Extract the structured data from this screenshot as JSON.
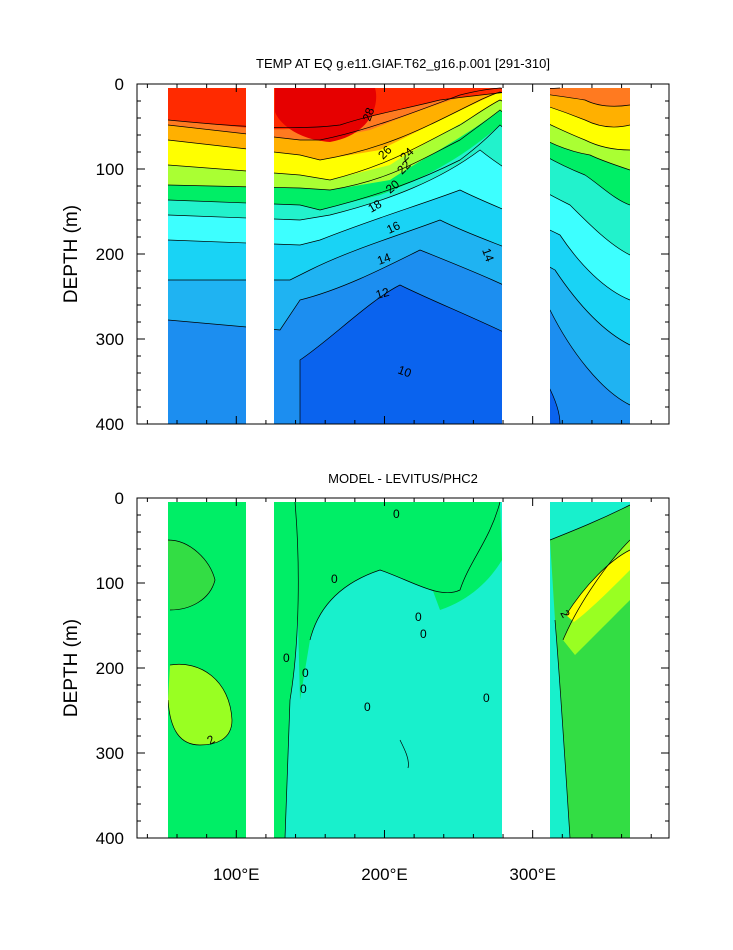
{
  "chart_data": [
    {
      "type": "contour",
      "title": "TEMP AT EQ g.e11.GIAF.T62_g16.p.001 [291-310]",
      "ylabel": "DEPTH (m)",
      "xlabel": "",
      "y_ticks": [
        "0",
        "100",
        "200",
        "300",
        "400"
      ],
      "x_ticks": [],
      "xlim": [
        33,
        392
      ],
      "ylim": [
        400,
        0
      ],
      "land_x": [
        [
          97,
          118
        ],
        [
          129,
          133
        ],
        [
          279,
          315
        ],
        [
          369,
          392
        ]
      ],
      "contour_labels": [
        "28",
        "26",
        "24",
        "22",
        "20",
        "18",
        "16",
        "14",
        "14",
        "12",
        "10"
      ],
      "colorscale": [
        "#0044ff",
        "#0a63ee",
        "#1c8ef0",
        "#1fb3f2",
        "#19d3f5",
        "#2fe8f8",
        "#3dffff",
        "#22f2cc",
        "#11e8a6",
        "#00ee66",
        "#22e05a",
        "#aaff33",
        "#ffff00",
        "#ffd700",
        "#ffb000",
        "#ff9a20",
        "#ff7a20",
        "#ff5a10",
        "#ff2a00",
        "#e60000"
      ]
    },
    {
      "type": "contour",
      "title": "MODEL - LEVITUS/PHC2",
      "ylabel": "DEPTH (m)",
      "xlabel": "",
      "y_ticks": [
        "0",
        "100",
        "200",
        "300",
        "400"
      ],
      "x_ticks": [
        "100°E",
        "200°E",
        "300°E"
      ],
      "x_tick_values": [
        100,
        200,
        300
      ],
      "xlim": [
        33,
        392
      ],
      "ylim": [
        400,
        0
      ],
      "land_x": [
        [
          97,
          118
        ],
        [
          129,
          133
        ],
        [
          279,
          315
        ],
        [
          369,
          392
        ]
      ],
      "contour_labels": [
        "2",
        "0",
        "0",
        "0",
        "0",
        "0",
        "0",
        "0",
        "0",
        "0",
        "2"
      ],
      "colorscale": [
        "#18f0cc",
        "#00ee66",
        "#33dd44",
        "#99ff22",
        "#ffff00"
      ]
    }
  ]
}
